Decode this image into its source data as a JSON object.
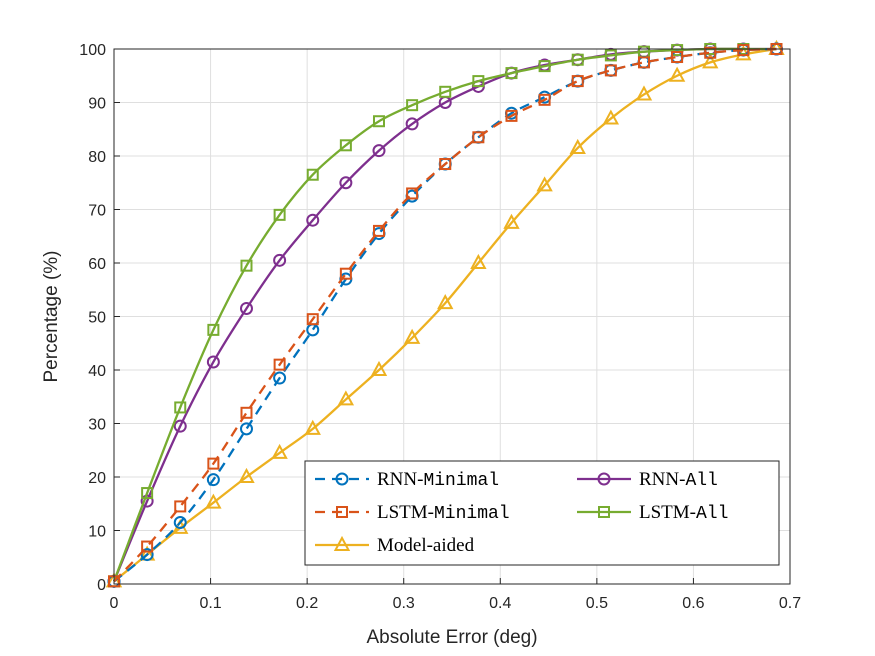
{
  "chart_data": {
    "type": "line",
    "title": "",
    "xlabel": "Absolute Error (deg)",
    "ylabel": "Percentage (%)",
    "xlim": [
      0,
      0.7
    ],
    "ylim": [
      0,
      100
    ],
    "xticks": [
      "0",
      "0.1",
      "0.2",
      "0.3",
      "0.4",
      "0.5",
      "0.6",
      "0.7"
    ],
    "yticks": [
      "0",
      "10",
      "20",
      "30",
      "40",
      "50",
      "60",
      "70",
      "80",
      "90",
      "100"
    ],
    "grid": true,
    "legend_position": "bottom-right",
    "x": [
      0,
      0.0343,
      0.0686,
      0.1029,
      0.1372,
      0.1715,
      0.2058,
      0.2401,
      0.2744,
      0.3087,
      0.343,
      0.3773,
      0.4116,
      0.4459,
      0.4802,
      0.5145,
      0.5488,
      0.5831,
      0.6174,
      0.6517,
      0.686
    ],
    "series": [
      {
        "name_prefix": "RNN-",
        "name_suffix": "Minimal",
        "color": "#0072BD",
        "dash": true,
        "marker": "circle",
        "values": [
          0.5,
          5.5,
          11.5,
          19.5,
          29,
          38.5,
          47.5,
          57,
          65.5,
          72.5,
          78.5,
          83.5,
          88,
          91,
          94,
          96,
          97.5,
          98.5,
          99.3,
          99.8,
          100
        ]
      },
      {
        "name_prefix": "LSTM-",
        "name_suffix": "Minimal",
        "color": "#D95319",
        "dash": true,
        "marker": "square",
        "values": [
          0.5,
          7,
          14.5,
          22.5,
          32,
          41,
          49.5,
          58,
          66,
          73,
          78.5,
          83.5,
          87.5,
          90.5,
          94,
          96,
          97.5,
          98.5,
          99.3,
          99.8,
          100
        ]
      },
      {
        "name_prefix": "",
        "name_suffix": "Model-aided",
        "color": "#EDB120",
        "dash": false,
        "marker": "triangle",
        "values": [
          0.5,
          5.5,
          10.5,
          15.2,
          20,
          24.5,
          29,
          34.5,
          40,
          46,
          52.5,
          60,
          67.5,
          74.5,
          81.5,
          87,
          91.5,
          95,
          97.5,
          99,
          100
        ]
      },
      {
        "name_prefix": "RNN-",
        "name_suffix": "All",
        "color": "#7E2F8E",
        "dash": false,
        "marker": "circle",
        "values": [
          0.5,
          15.5,
          29.5,
          41.5,
          51.5,
          60.5,
          68,
          75,
          81,
          86,
          90,
          93,
          95.5,
          97,
          98,
          99,
          99.5,
          99.8,
          100,
          100,
          100
        ]
      },
      {
        "name_prefix": "LSTM-",
        "name_suffix": "All",
        "color": "#77AC30",
        "dash": false,
        "marker": "square",
        "values": [
          0.5,
          17,
          33,
          47.5,
          59.5,
          69,
          76.5,
          82,
          86.5,
          89.5,
          92,
          94,
          95.5,
          96.8,
          98,
          98.8,
          99.5,
          99.8,
          100,
          100,
          100
        ]
      }
    ]
  }
}
